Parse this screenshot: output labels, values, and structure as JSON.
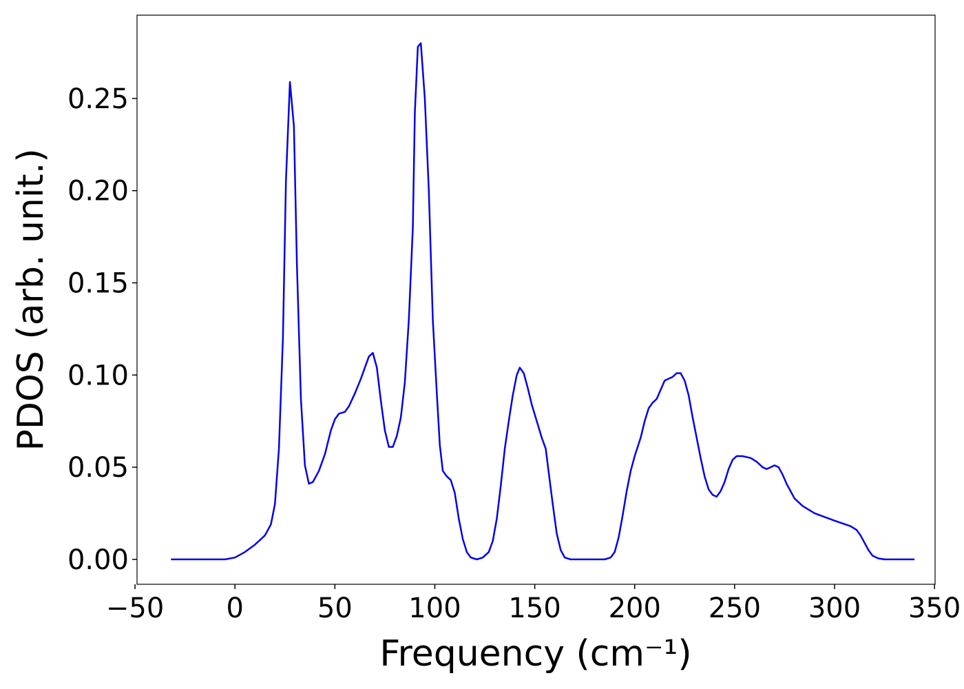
{
  "chart_data": {
    "type": "line",
    "x_label": "Frequency (cm⁻¹)",
    "y_label": "PDOS (arb. unit.)",
    "xlim": [
      -49,
      350.3
    ],
    "ylim": [
      -0.0135,
      0.2952
    ],
    "xticks": [
      {
        "value": -50,
        "label": "−50"
      },
      0,
      50,
      100,
      150,
      200,
      250,
      300,
      350
    ],
    "yticks": [
      {
        "value": 0,
        "label": "0.00"
      },
      0.05,
      {
        "value": 0.1,
        "label": "0.10"
      },
      0.15,
      {
        "value": 0.2,
        "label": "0.20"
      },
      0.25
    ],
    "grid": false,
    "series": [
      {
        "color": "#0000ee",
        "x": [
          -32,
          -5,
          0,
          5,
          10,
          15,
          18,
          20,
          22,
          24,
          25.5,
          27.5,
          29.5,
          31,
          33,
          35,
          37,
          39,
          42,
          45,
          48,
          50,
          52,
          55,
          57,
          60,
          63,
          65,
          67,
          69,
          71,
          73,
          75,
          77,
          79,
          81,
          83,
          85,
          87,
          89,
          90,
          91.5,
          93,
          95,
          97,
          99,
          101,
          102.5,
          104,
          106,
          108,
          110,
          112,
          114,
          116,
          118,
          121,
          124,
          127,
          129,
          131,
          133,
          135,
          137,
          139,
          141,
          142.5,
          144.5,
          146.5,
          148.5,
          151,
          153.5,
          155.5,
          157,
          159,
          161,
          163,
          165,
          168,
          185,
          188,
          190,
          192,
          194,
          196,
          198,
          200,
          203,
          205,
          207,
          209,
          211,
          213,
          215,
          217,
          219,
          221,
          223,
          225,
          227,
          229,
          231,
          233,
          235,
          237,
          239,
          241,
          243,
          245,
          247,
          249,
          251,
          254,
          258,
          261,
          264,
          266,
          268,
          270,
          272,
          274,
          276,
          278,
          280,
          284,
          290,
          300,
          308,
          311,
          313,
          315,
          317,
          319,
          322,
          325,
          340
        ],
        "values": [
          0,
          0,
          0.001,
          0.004,
          0.008,
          0.013,
          0.019,
          0.03,
          0.06,
          0.12,
          0.205,
          0.259,
          0.235,
          0.16,
          0.087,
          0.051,
          0.041,
          0.042,
          0.048,
          0.057,
          0.07,
          0.076,
          0.079,
          0.08,
          0.083,
          0.09,
          0.098,
          0.104,
          0.11,
          0.112,
          0.104,
          0.086,
          0.07,
          0.061,
          0.061,
          0.067,
          0.077,
          0.096,
          0.13,
          0.18,
          0.242,
          0.278,
          0.28,
          0.25,
          0.2,
          0.13,
          0.09,
          0.062,
          0.048,
          0.045,
          0.043,
          0.036,
          0.022,
          0.011,
          0.004,
          0.001,
          0,
          0.001,
          0.004,
          0.01,
          0.022,
          0.04,
          0.06,
          0.075,
          0.089,
          0.1,
          0.104,
          0.101,
          0.093,
          0.084,
          0.075,
          0.066,
          0.06,
          0.047,
          0.03,
          0.014,
          0.005,
          0.001,
          0,
          0,
          0.001,
          0.004,
          0.012,
          0.024,
          0.037,
          0.048,
          0.056,
          0.066,
          0.075,
          0.082,
          0.085,
          0.087,
          0.092,
          0.097,
          0.098,
          0.099,
          0.101,
          0.101,
          0.097,
          0.089,
          0.077,
          0.066,
          0.055,
          0.045,
          0.038,
          0.035,
          0.034,
          0.037,
          0.042,
          0.049,
          0.054,
          0.056,
          0.056,
          0.055,
          0.053,
          0.05,
          0.049,
          0.05,
          0.051,
          0.05,
          0.046,
          0.041,
          0.037,
          0.033,
          0.029,
          0.025,
          0.021,
          0.018,
          0.016,
          0.013,
          0.009,
          0.005,
          0.002,
          0.0005,
          0,
          0
        ]
      }
    ]
  }
}
